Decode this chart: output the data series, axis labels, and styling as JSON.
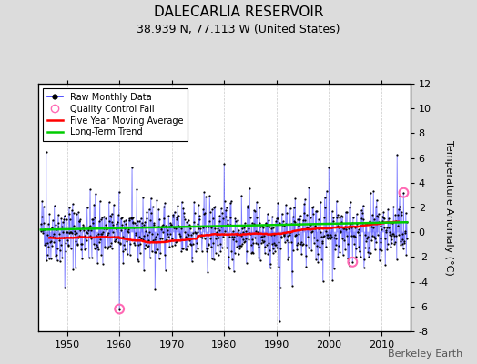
{
  "title": "DALECARLIA RESERVOIR",
  "subtitle": "38.939 N, 77.113 W (United States)",
  "ylabel": "Temperature Anomaly (°C)",
  "watermark": "Berkeley Earth",
  "ylim": [
    -8,
    12
  ],
  "yticks": [
    -8,
    -6,
    -4,
    -2,
    0,
    2,
    4,
    6,
    8,
    10,
    12
  ],
  "xlim": [
    1944.5,
    2015.5
  ],
  "xticks": [
    1950,
    1960,
    1970,
    1980,
    1990,
    2000,
    2010
  ],
  "start_year": 1945,
  "end_year": 2014,
  "raw_color": "#3333FF",
  "raw_dot_color": "#000000",
  "ma_color": "#FF0000",
  "trend_color": "#00CC00",
  "qc_color": "#FF69B4",
  "bg_color": "#DCDCDC",
  "plot_bg_color": "#FFFFFF",
  "grid_color": "#B0B0B0",
  "title_fontsize": 11,
  "subtitle_fontsize": 9,
  "tick_fontsize": 8,
  "ylabel_fontsize": 8,
  "watermark_fontsize": 8,
  "seed": 42,
  "trend_slope": 0.012,
  "trend_intercept": 0.2,
  "noise_std": 1.3
}
